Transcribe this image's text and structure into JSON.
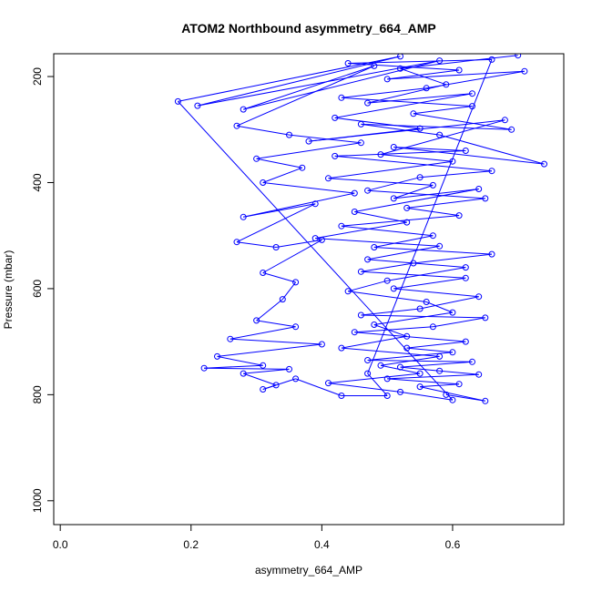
{
  "chart_data": {
    "type": "scatter",
    "title": "ATOM2 Northbound asymmetry_664_AMP",
    "xlabel": "asymmetry_664_AMP",
    "ylabel": "Pressure (mbar)",
    "xlim": [
      -0.01,
      0.77
    ],
    "ylim": [
      1045,
      157
    ],
    "y_reversed": true,
    "x_ticks": [
      0.0,
      0.2,
      0.4,
      0.6
    ],
    "x_tick_labels": [
      "0.0",
      "0.2",
      "0.4",
      "0.6"
    ],
    "y_ticks": [
      200,
      400,
      600,
      800,
      1000
    ],
    "y_tick_labels": [
      "200",
      "400",
      "600",
      "800",
      "1000"
    ],
    "grid": false,
    "series": [
      {
        "color": "#0000ff",
        "marker": "open-circle",
        "connect_points": true,
        "points": [
          [
            0.7,
            160
          ],
          [
            0.52,
            185
          ],
          [
            0.59,
            215
          ],
          [
            0.47,
            250
          ],
          [
            0.63,
            232
          ],
          [
            0.42,
            278
          ],
          [
            0.55,
            298
          ],
          [
            0.38,
            322
          ],
          [
            0.68,
            282
          ],
          [
            0.49,
            347
          ],
          [
            0.6,
            360
          ],
          [
            0.41,
            392
          ],
          [
            0.57,
            405
          ],
          [
            0.51,
            430
          ],
          [
            0.64,
            412
          ],
          [
            0.45,
            455
          ],
          [
            0.53,
            475
          ],
          [
            0.39,
            505
          ],
          [
            0.58,
            520
          ],
          [
            0.47,
            545
          ],
          [
            0.62,
            560
          ],
          [
            0.5,
            585
          ],
          [
            0.44,
            605
          ],
          [
            0.56,
            625
          ],
          [
            0.6,
            645
          ],
          [
            0.48,
            668
          ],
          [
            0.53,
            690
          ],
          [
            0.43,
            712
          ],
          [
            0.58,
            728
          ],
          [
            0.49,
            745
          ],
          [
            0.55,
            760
          ],
          [
            0.41,
            778
          ],
          [
            0.52,
            795
          ],
          [
            0.6,
            810
          ],
          [
            0.18,
            247
          ],
          [
            0.52,
            162
          ],
          [
            0.21,
            255
          ],
          [
            0.58,
            170
          ],
          [
            0.28,
            262
          ],
          [
            0.48,
            180
          ],
          [
            0.27,
            293
          ],
          [
            0.35,
            310
          ],
          [
            0.46,
            325
          ],
          [
            0.3,
            355
          ],
          [
            0.37,
            372
          ],
          [
            0.31,
            400
          ],
          [
            0.45,
            420
          ],
          [
            0.28,
            465
          ],
          [
            0.39,
            440
          ],
          [
            0.27,
            512
          ],
          [
            0.33,
            522
          ],
          [
            0.4,
            508
          ],
          [
            0.31,
            570
          ],
          [
            0.36,
            588
          ],
          [
            0.34,
            620
          ],
          [
            0.3,
            660
          ],
          [
            0.36,
            672
          ],
          [
            0.26,
            695
          ],
          [
            0.4,
            705
          ],
          [
            0.24,
            728
          ],
          [
            0.31,
            745
          ],
          [
            0.22,
            750
          ],
          [
            0.35,
            752
          ],
          [
            0.28,
            760
          ],
          [
            0.33,
            782
          ],
          [
            0.31,
            790
          ],
          [
            0.36,
            770
          ],
          [
            0.43,
            802
          ],
          [
            0.5,
            802
          ],
          [
            0.47,
            760
          ],
          [
            0.66,
            168
          ],
          [
            0.44,
            175
          ],
          [
            0.61,
            188
          ],
          [
            0.5,
            205
          ],
          [
            0.71,
            190
          ],
          [
            0.56,
            222
          ],
          [
            0.43,
            240
          ],
          [
            0.63,
            256
          ],
          [
            0.54,
            270
          ],
          [
            0.69,
            300
          ],
          [
            0.46,
            290
          ],
          [
            0.58,
            310
          ],
          [
            0.74,
            365
          ],
          [
            0.51,
            333
          ],
          [
            0.62,
            340
          ],
          [
            0.42,
            350
          ],
          [
            0.66,
            378
          ],
          [
            0.55,
            390
          ],
          [
            0.47,
            415
          ],
          [
            0.65,
            430
          ],
          [
            0.53,
            448
          ],
          [
            0.61,
            462
          ],
          [
            0.43,
            482
          ],
          [
            0.57,
            500
          ],
          [
            0.48,
            522
          ],
          [
            0.66,
            535
          ],
          [
            0.54,
            552
          ],
          [
            0.46,
            568
          ],
          [
            0.62,
            580
          ],
          [
            0.51,
            600
          ],
          [
            0.64,
            615
          ],
          [
            0.55,
            638
          ],
          [
            0.46,
            650
          ],
          [
            0.65,
            655
          ],
          [
            0.57,
            672
          ],
          [
            0.45,
            682
          ],
          [
            0.62,
            700
          ],
          [
            0.53,
            712
          ],
          [
            0.6,
            720
          ],
          [
            0.47,
            735
          ],
          [
            0.63,
            738
          ],
          [
            0.52,
            748
          ],
          [
            0.58,
            755
          ],
          [
            0.64,
            762
          ],
          [
            0.5,
            770
          ],
          [
            0.61,
            780
          ],
          [
            0.55,
            785
          ],
          [
            0.65,
            812
          ],
          [
            0.59,
            800
          ]
        ]
      }
    ]
  }
}
